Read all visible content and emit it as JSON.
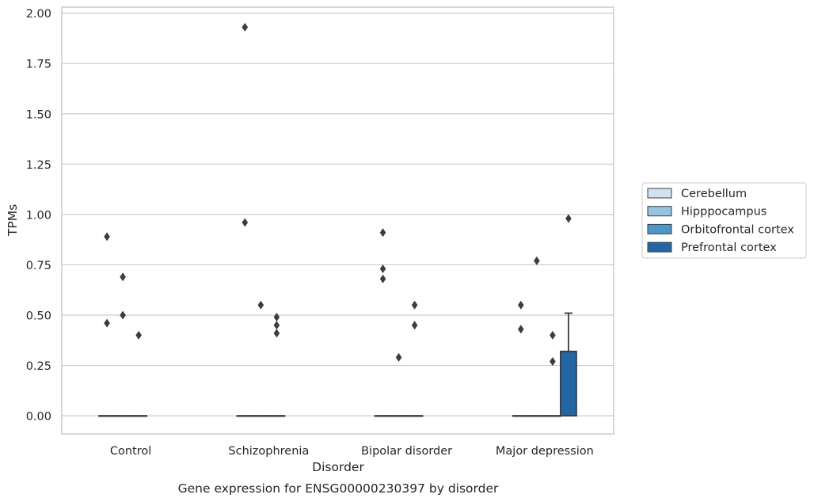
{
  "chart_data": {
    "type": "boxplot",
    "title": "Gene expression for ENSG00000230397 by disorder",
    "xlabel": "Disorder",
    "ylabel": "TPMs",
    "ylim": [
      -0.09,
      2.03
    ],
    "yticks": [
      0.0,
      0.25,
      0.5,
      0.75,
      1.0,
      1.25,
      1.5,
      1.75,
      2.0
    ],
    "ytick_labels": [
      "0.00",
      "0.25",
      "0.50",
      "0.75",
      "1.00",
      "1.25",
      "1.50",
      "1.75",
      "2.00"
    ],
    "categories": [
      "Control",
      "Schizophrenia",
      "Bipolar disorder",
      "Major depression"
    ],
    "grid": "horizontal",
    "legend_position": "right, outside plot",
    "series": [
      {
        "name": "Cerebellum",
        "color": "#d0e1f2",
        "boxes": [
          {
            "q1": 0,
            "median": 0,
            "q3": 0,
            "whisker_low": 0,
            "whisker_high": 0,
            "outliers": [
              0.89,
              0.46
            ]
          },
          {
            "q1": 0,
            "median": 0,
            "q3": 0,
            "whisker_low": 0,
            "whisker_high": 0,
            "outliers": [
              1.93,
              0.96
            ]
          },
          {
            "q1": 0,
            "median": 0,
            "q3": 0,
            "whisker_low": 0,
            "whisker_high": 0,
            "outliers": [
              0.91,
              0.73,
              0.68
            ]
          },
          {
            "q1": 0,
            "median": 0,
            "q3": 0,
            "whisker_low": 0,
            "whisker_high": 0,
            "outliers": [
              0.55,
              0.43
            ]
          }
        ]
      },
      {
        "name": "Hipppocampus",
        "color": "#94c4df",
        "boxes": [
          {
            "q1": 0,
            "median": 0,
            "q3": 0,
            "whisker_low": 0,
            "whisker_high": 0,
            "outliers": [
              0.69,
              0.5
            ]
          },
          {
            "q1": 0,
            "median": 0,
            "q3": 0,
            "whisker_low": 0,
            "whisker_high": 0,
            "outliers": [
              0.55
            ]
          },
          {
            "q1": 0,
            "median": 0,
            "q3": 0,
            "whisker_low": 0,
            "whisker_high": 0,
            "outliers": [
              0.29
            ]
          },
          {
            "q1": 0,
            "median": 0,
            "q3": 0,
            "whisker_low": 0,
            "whisker_high": 0,
            "outliers": [
              0.77
            ]
          }
        ]
      },
      {
        "name": "Orbitofrontal cortex",
        "color": "#4a98c9",
        "boxes": [
          {
            "q1": 0,
            "median": 0,
            "q3": 0,
            "whisker_low": 0,
            "whisker_high": 0,
            "outliers": [
              0.4
            ]
          },
          {
            "q1": 0,
            "median": 0,
            "q3": 0,
            "whisker_low": 0,
            "whisker_high": 0,
            "outliers": [
              0.49,
              0.45,
              0.41
            ]
          },
          {
            "q1": 0,
            "median": 0,
            "q3": 0,
            "whisker_low": 0,
            "whisker_high": 0,
            "outliers": [
              0.55,
              0.45
            ]
          },
          {
            "q1": 0,
            "median": 0,
            "q3": 0,
            "whisker_low": 0,
            "whisker_high": 0,
            "outliers": [
              0.4,
              0.27
            ]
          }
        ]
      },
      {
        "name": "Prefrontal cortex",
        "color": "#2366a8",
        "boxes": [
          null,
          null,
          null,
          {
            "q1": 0,
            "median": 0,
            "q3": 0.32,
            "whisker_low": 0,
            "whisker_high": 0.51,
            "outliers": [
              0.98
            ]
          }
        ]
      }
    ]
  }
}
